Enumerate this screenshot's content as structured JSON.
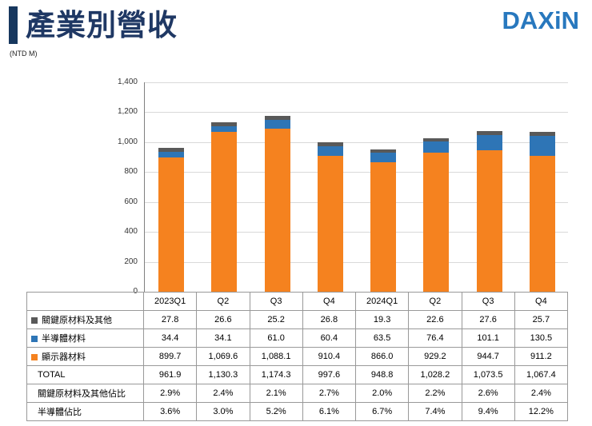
{
  "header": {
    "title": "產業別營收",
    "unit": "(NTD M)",
    "logo": "DAXiN"
  },
  "colors": {
    "title": "#1F3864",
    "accent_bar": "#17375E",
    "logo": "#2878BE",
    "display_materials_orange": "#F5821F",
    "semiconductor_blue": "#2E75B6",
    "key_raw_gray": "#595959",
    "gridline": "#D9D9D9"
  },
  "chart_data": {
    "type": "bar",
    "stacked": true,
    "title": "產業別營收",
    "xlabel": "",
    "ylabel": "",
    "unit": "NTD M",
    "categories": [
      "2023Q1",
      "Q2",
      "Q3",
      "Q4",
      "2024Q1",
      "Q2",
      "Q3",
      "Q4"
    ],
    "series": [
      {
        "name": "顯示器材料",
        "color": "#F5821F",
        "values": [
          899.7,
          1069.6,
          1088.1,
          910.4,
          866.0,
          929.2,
          944.7,
          911.2
        ]
      },
      {
        "name": "半導體材料",
        "color": "#2E75B6",
        "values": [
          34.4,
          34.1,
          61.0,
          60.4,
          63.5,
          76.4,
          101.1,
          130.5
        ]
      },
      {
        "name": "關鍵原材料及其他",
        "color": "#595959",
        "values": [
          27.8,
          26.6,
          25.2,
          26.8,
          19.3,
          22.6,
          27.6,
          25.7
        ]
      }
    ],
    "totals": [
      961.9,
      1130.3,
      1174.3,
      997.6,
      948.8,
      1028.2,
      1073.5,
      1067.4
    ],
    "ylim": [
      0,
      1400
    ],
    "yticks": [
      0,
      200,
      400,
      600,
      800,
      1000,
      1200,
      1400
    ],
    "ytick_labels": [
      "0",
      "200",
      "400",
      "600",
      "800",
      "1,000",
      "1,200",
      "1,400"
    ],
    "grid": true,
    "legend_position": "table-left"
  },
  "table": {
    "header": [
      "",
      "2023Q1",
      "Q2",
      "Q3",
      "Q4",
      "2024Q1",
      "Q2",
      "Q3",
      "Q4"
    ],
    "rows": [
      {
        "label": "關鍵原材料及其他",
        "swatch": "#595959",
        "values": [
          "27.8",
          "26.6",
          "25.2",
          "26.8",
          "19.3",
          "22.6",
          "27.6",
          "25.7"
        ]
      },
      {
        "label": "半導體材料",
        "swatch": "#2E75B6",
        "values": [
          "34.4",
          "34.1",
          "61.0",
          "60.4",
          "63.5",
          "76.4",
          "101.1",
          "130.5"
        ]
      },
      {
        "label": "顯示器材料",
        "swatch": "#F5821F",
        "values": [
          "899.7",
          "1,069.6",
          "1,088.1",
          "910.4",
          "866.0",
          "929.2",
          "944.7",
          "911.2"
        ]
      },
      {
        "label": "TOTAL",
        "swatch": null,
        "values": [
          "961.9",
          "1,130.3",
          "1,174.3",
          "997.6",
          "948.8",
          "1,028.2",
          "1,073.5",
          "1,067.4"
        ]
      },
      {
        "label": "關鍵原材料及其他佔比",
        "swatch": null,
        "values": [
          "2.9%",
          "2.4%",
          "2.1%",
          "2.7%",
          "2.0%",
          "2.2%",
          "2.6%",
          "2.4%"
        ]
      },
      {
        "label": "半導體佔比",
        "swatch": null,
        "values": [
          "3.6%",
          "3.0%",
          "5.2%",
          "6.1%",
          "6.7%",
          "7.4%",
          "9.4%",
          "12.2%"
        ]
      }
    ]
  }
}
